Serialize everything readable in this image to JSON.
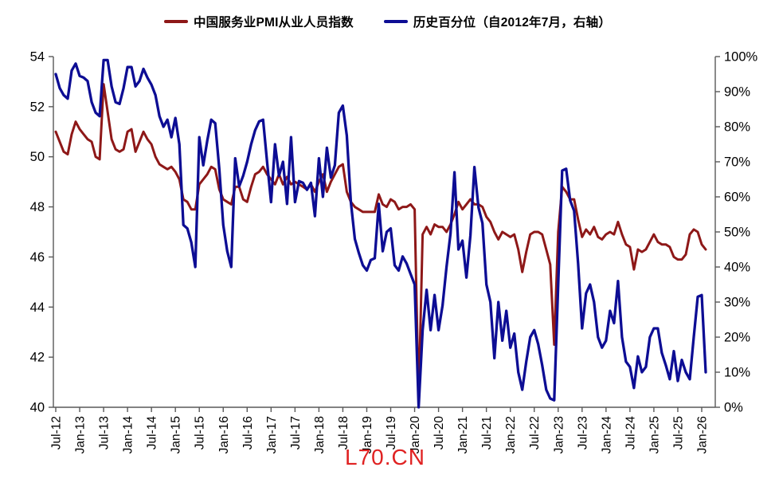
{
  "legend": [
    {
      "label": "中国服务业PMI从业人员指数",
      "color": "#8e1818"
    },
    {
      "label": "历史百分位（自2012年7月，右轴）",
      "color": "#0d0d94"
    }
  ],
  "watermark": {
    "text": "L70.CN",
    "color": "#e02222"
  },
  "chart_data": {
    "type": "line",
    "x_unit": "monthly",
    "x_start": "Jul-2012",
    "x_end": "Feb-2026",
    "grid": "off",
    "legend_position": "top-center",
    "x_tick_labels": [
      "Jul-12",
      "Jan-13",
      "Jul-13",
      "Jan-14",
      "Jul-14",
      "Jan-15",
      "Jul-15",
      "Jan-16",
      "Jul-16",
      "Jan-17",
      "Jul-17",
      "Jan-18",
      "Jul-18",
      "Jan-19",
      "Jul-19",
      "Jan-20",
      "Jul-20",
      "Jan-21",
      "Jul-21",
      "Jan-22",
      "Jul-22",
      "Jan-23",
      "Jul-23",
      "Jan-24",
      "Jul-24",
      "Jan-25",
      "Jul-25",
      "Jan-26"
    ],
    "left_axis": {
      "min": 40,
      "max": 54,
      "ticks": [
        54,
        52,
        50,
        48,
        46,
        44,
        42,
        40
      ],
      "tick_labels": [
        "54",
        "52",
        "50",
        "48",
        "46",
        "44",
        "42",
        "40"
      ]
    },
    "right_axis": {
      "min": 0,
      "max": 100,
      "ticks": [
        100,
        90,
        80,
        70,
        60,
        50,
        40,
        30,
        20,
        10,
        0
      ],
      "tick_labels": [
        "100%",
        "90%",
        "80%",
        "70%",
        "60%",
        "50%",
        "40%",
        "30%",
        "20%",
        "10%",
        "0%"
      ]
    },
    "series": [
      {
        "name": "中国服务业PMI从业人员指数",
        "axis": "left",
        "color": "#8e1818",
        "values": [
          51.0,
          50.6,
          50.2,
          50.1,
          50.9,
          51.4,
          51.1,
          50.9,
          50.7,
          50.6,
          50.0,
          49.9,
          52.9,
          51.8,
          50.7,
          50.3,
          50.2,
          50.3,
          51.0,
          51.1,
          50.2,
          50.6,
          51.0,
          50.7,
          50.5,
          50.0,
          49.7,
          49.6,
          49.5,
          49.6,
          49.4,
          49.1,
          48.3,
          48.2,
          47.9,
          47.9,
          48.9,
          49.1,
          49.3,
          49.6,
          49.5,
          48.7,
          48.3,
          48.2,
          48.1,
          48.8,
          48.8,
          48.3,
          48.2,
          48.8,
          49.3,
          49.4,
          49.6,
          49.3,
          49.1,
          48.9,
          49.3,
          48.9,
          49.2,
          48.9,
          49.0,
          48.9,
          48.8,
          48.7,
          48.9,
          48.6,
          49.0,
          49.3,
          48.6,
          49.0,
          49.3,
          49.6,
          49.7,
          48.6,
          48.2,
          48.0,
          47.9,
          47.8,
          47.8,
          47.8,
          47.8,
          48.5,
          48.1,
          48.0,
          48.3,
          48.2,
          47.9,
          48.0,
          48.0,
          48.1,
          47.9,
          40.2,
          46.9,
          47.2,
          46.9,
          47.3,
          47.2,
          47.2,
          47.0,
          47.3,
          47.7,
          48.2,
          47.9,
          48.1,
          48.3,
          48.1,
          48.1,
          48.0,
          47.6,
          47.4,
          47.0,
          46.7,
          47.0,
          46.9,
          46.8,
          46.9,
          46.3,
          45.4,
          46.2,
          46.9,
          47.0,
          47.0,
          46.9,
          46.3,
          45.7,
          42.5,
          47.0,
          48.8,
          48.6,
          48.3,
          48.3,
          47.5,
          46.8,
          47.1,
          46.9,
          47.2,
          46.8,
          46.7,
          46.9,
          47.0,
          46.9,
          47.4,
          46.9,
          46.5,
          46.4,
          45.5,
          46.3,
          46.2,
          46.3,
          46.6,
          46.9,
          46.6,
          46.5,
          46.5,
          46.4,
          46.0,
          45.9,
          45.9,
          46.1,
          46.9,
          47.1,
          47.0,
          46.5,
          46.3
        ]
      },
      {
        "name": "历史百分位（自2012年7月，右轴）",
        "axis": "right",
        "color": "#0d0d94",
        "values": [
          95,
          91,
          89,
          88,
          96,
          98,
          94.5,
          94,
          93,
          87,
          84,
          83,
          99,
          99,
          91.5,
          87,
          86.5,
          91,
          97,
          97,
          91.5,
          93,
          96.5,
          94,
          92,
          89,
          83,
          80,
          82,
          77,
          82.5,
          75,
          52,
          51,
          47,
          40,
          77,
          69,
          76,
          82,
          81,
          68,
          52,
          44.5,
          40,
          71,
          63,
          66,
          70,
          75,
          79,
          81.5,
          82,
          70,
          58.5,
          75,
          66,
          70,
          58,
          77,
          58.5,
          64.5,
          64,
          62,
          64,
          54.5,
          71,
          60,
          74,
          65.5,
          69,
          84,
          86,
          77.5,
          58.5,
          48,
          44,
          40.5,
          39,
          42,
          42.5,
          58,
          44.5,
          50,
          51,
          40.5,
          39,
          43,
          41,
          38,
          35,
          0,
          22,
          33.5,
          22,
          32,
          22,
          29,
          40,
          49.5,
          67,
          45,
          47.5,
          37,
          49,
          68.5,
          57,
          52.5,
          35,
          30,
          14,
          30,
          19,
          27.5,
          17,
          21,
          10,
          5,
          13,
          20,
          22,
          18,
          12,
          5,
          2.5,
          2,
          35,
          67.5,
          68,
          59,
          56,
          41,
          22.5,
          32.5,
          35,
          30,
          20,
          17,
          19,
          27.5,
          24,
          36,
          20,
          13,
          11.5,
          5.5,
          14.5,
          10,
          11.5,
          20,
          22.5,
          22.5,
          15.5,
          12,
          8,
          16,
          7.5,
          13.5,
          10,
          8,
          20,
          31.5,
          32,
          10
        ]
      }
    ]
  }
}
